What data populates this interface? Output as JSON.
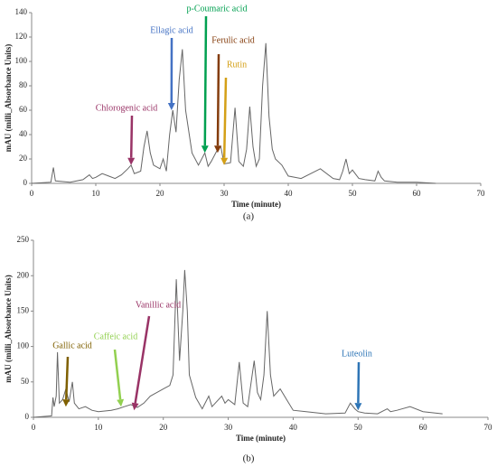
{
  "chart_data": [
    {
      "type": "line",
      "x_label": "Time (minute)",
      "y_label": "mAU (milli_Absorbance Units)",
      "caption": "(a)",
      "xlim": [
        0,
        70
      ],
      "xticks": [
        0,
        10,
        20,
        30,
        40,
        50,
        60,
        70
      ],
      "ylim": [
        0,
        140
      ],
      "yticks": [
        0,
        20,
        40,
        60,
        80,
        100,
        120,
        140
      ],
      "series": [
        {
          "color": "#666666",
          "x": [
            0,
            3,
            3.4,
            3.7,
            6,
            8,
            9,
            9.5,
            10,
            11,
            12,
            13,
            14,
            15,
            15.5,
            16,
            17,
            17.5,
            18,
            18.5,
            19,
            20,
            20.5,
            21,
            21.5,
            22,
            22.5,
            23,
            23.5,
            24,
            25,
            26,
            27,
            27.5,
            28,
            29,
            29.5,
            30,
            31,
            31.7,
            32.3,
            33,
            33.5,
            34,
            34.5,
            35,
            35.5,
            36,
            36.5,
            37,
            37.5,
            38,
            39,
            40,
            42,
            45,
            47,
            48,
            48.5,
            49,
            49.5,
            50,
            51,
            52,
            53.5,
            54,
            54.5,
            55,
            57,
            60,
            63
          ],
          "values": [
            0,
            1,
            13,
            2,
            1,
            3,
            7,
            4,
            5,
            8,
            6,
            4,
            7,
            12,
            15,
            8,
            10,
            30,
            43,
            25,
            15,
            12,
            20,
            10,
            40,
            60,
            42,
            85,
            110,
            60,
            25,
            15,
            25,
            14,
            18,
            28,
            30,
            16,
            17,
            62,
            18,
            14,
            28,
            63,
            30,
            14,
            20,
            80,
            115,
            55,
            28,
            20,
            15,
            6,
            4,
            12,
            4,
            3,
            10,
            20,
            8,
            11,
            4,
            3,
            2,
            10,
            5,
            2,
            1,
            1,
            0
          ]
        }
      ],
      "annotations": [
        {
          "text": "Chlorogenic acid",
          "x": 15.5,
          "y": 15,
          "color": "#993366"
        },
        {
          "text": "Ellagic acid",
          "x": 21.8,
          "y": 60,
          "color": "#4472c4"
        },
        {
          "text": "p-Coumaric acid",
          "x": 27,
          "y": 25,
          "color": "#00a050"
        },
        {
          "text": "Ferulic acid",
          "x": 29,
          "y": 25,
          "color": "#843c0c"
        },
        {
          "text": "Rutin",
          "x": 30,
          "y": 15,
          "color": "#d4a017"
        }
      ]
    },
    {
      "type": "line",
      "x_label": "Time (minute)",
      "y_label": "mAU (milli_Absorbance Units)",
      "caption": "(b)",
      "xlim": [
        0,
        70
      ],
      "xticks": [
        0,
        10,
        20,
        30,
        40,
        50,
        60,
        70
      ],
      "ylim": [
        0,
        250
      ],
      "yticks": [
        0,
        50,
        100,
        150,
        200,
        250
      ],
      "series": [
        {
          "color": "#666666",
          "x": [
            0,
            2.8,
            3,
            3.2,
            3.5,
            3.7,
            4,
            4.5,
            5,
            5.5,
            6,
            6.3,
            7,
            8,
            9,
            10,
            12,
            13,
            14,
            15,
            16,
            17,
            18,
            19,
            20,
            21,
            21.5,
            22,
            22.5,
            23,
            23.3,
            23.7,
            24,
            25,
            26,
            27,
            27.5,
            28,
            29,
            29.5,
            30,
            31,
            31.7,
            32.3,
            33,
            34,
            34.5,
            35,
            35.5,
            36,
            36.5,
            37,
            38,
            39,
            40,
            42,
            45,
            48,
            48.8,
            49.5,
            50,
            51,
            53,
            54.5,
            55,
            56,
            58,
            60,
            63
          ],
          "values": [
            0,
            2,
            28,
            15,
            30,
            92,
            20,
            25,
            40,
            22,
            50,
            20,
            12,
            15,
            10,
            8,
            10,
            12,
            15,
            18,
            14,
            20,
            30,
            35,
            40,
            45,
            60,
            195,
            80,
            150,
            208,
            150,
            60,
            28,
            12,
            30,
            15,
            20,
            30,
            20,
            25,
            18,
            78,
            20,
            15,
            80,
            35,
            25,
            60,
            150,
            60,
            30,
            40,
            25,
            10,
            8,
            5,
            6,
            20,
            12,
            8,
            6,
            5,
            12,
            8,
            10,
            15,
            8,
            5
          ]
        }
      ],
      "annotations": [
        {
          "text": "Gallic acid",
          "x": 5,
          "y": 15,
          "color": "#7f6000"
        },
        {
          "text": "Caffeic acid",
          "x": 13.5,
          "y": 15,
          "color": "#92d050"
        },
        {
          "text": "Vanillic acid",
          "x": 15.5,
          "y": 10,
          "color": "#993366"
        },
        {
          "text": "Luteolin",
          "x": 50,
          "y": 10,
          "color": "#2e75b6"
        }
      ]
    }
  ]
}
